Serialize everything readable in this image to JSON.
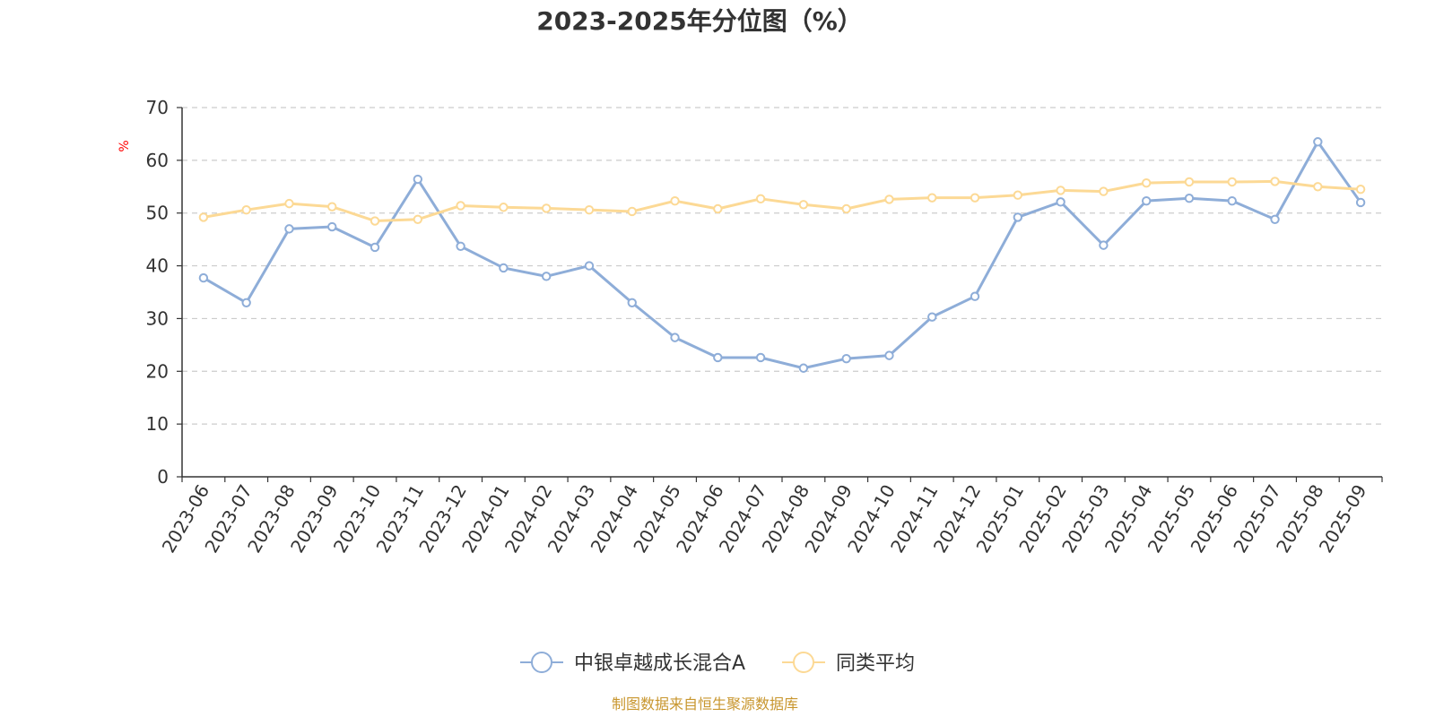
{
  "chart_data": {
    "type": "line",
    "title": "2023-2025年分位图（%）",
    "ylabel": "%",
    "ylim": [
      0,
      70
    ],
    "yticks": [
      0,
      10,
      20,
      30,
      40,
      50,
      60,
      70
    ],
    "grid": true,
    "legend_position": "bottom",
    "categories": [
      "2023-06",
      "2023-07",
      "2023-08",
      "2023-09",
      "2023-10",
      "2023-11",
      "2023-12",
      "2024-01",
      "2024-02",
      "2024-03",
      "2024-04",
      "2024-05",
      "2024-06",
      "2024-07",
      "2024-08",
      "2024-09",
      "2024-10",
      "2024-11",
      "2024-12",
      "2025-01",
      "2025-02",
      "2025-03",
      "2025-04",
      "2025-05",
      "2025-06",
      "2025-07",
      "2025-08",
      "2025-09"
    ],
    "series": [
      {
        "name": "中银卓越成长混合A",
        "color": "#8eadd8",
        "values": [
          37.7,
          33.0,
          47.0,
          47.4,
          43.5,
          56.4,
          43.7,
          39.6,
          38.0,
          40.0,
          33.0,
          26.4,
          22.6,
          22.6,
          20.6,
          22.4,
          23.0,
          30.3,
          34.2,
          49.2,
          52.1,
          43.9,
          52.3,
          52.8,
          52.3,
          48.8,
          63.5,
          52.0
        ]
      },
      {
        "name": "同类平均",
        "color": "#fcd995",
        "values": [
          49.2,
          50.6,
          51.8,
          51.2,
          48.5,
          48.8,
          51.4,
          51.1,
          50.9,
          50.6,
          50.3,
          52.3,
          50.8,
          52.7,
          51.6,
          50.8,
          52.6,
          52.9,
          52.9,
          53.4,
          54.3,
          54.1,
          55.7,
          55.9,
          55.9,
          56.0,
          55.0,
          54.5
        ]
      }
    ]
  },
  "source_text": "制图数据来自恒生聚源数据库"
}
